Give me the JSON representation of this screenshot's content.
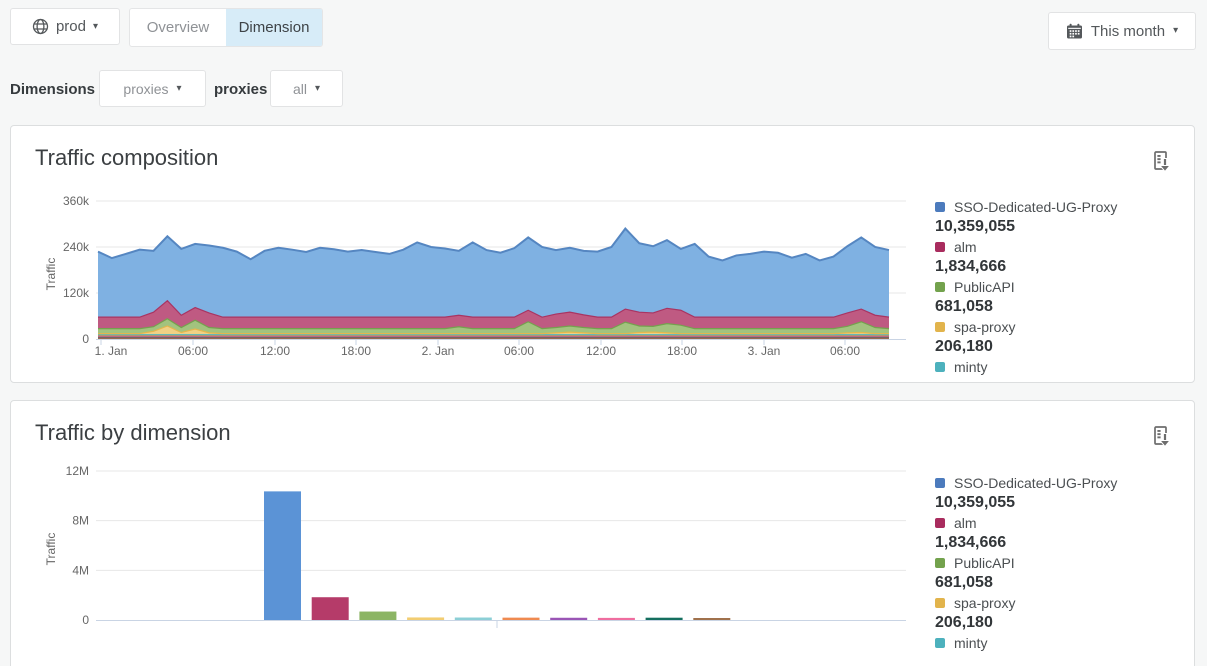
{
  "header": {
    "env": {
      "label": "prod"
    },
    "tabs": [
      {
        "label": "Overview",
        "active": false
      },
      {
        "label": "Dimension",
        "active": true
      }
    ],
    "date_range": {
      "label": "This month"
    }
  },
  "filters": {
    "section_label": "Dimensions",
    "dimension_dropdown": {
      "value": "proxies"
    },
    "dimension_name": "proxies",
    "value_dropdown": {
      "value": "all"
    }
  },
  "cards": [
    {
      "title": "Traffic composition"
    },
    {
      "title": "Traffic by dimension"
    }
  ],
  "legend": {
    "items": [
      {
        "label": "SSO-Dedicated-UG-Proxy",
        "value": "10,359,055",
        "color": "#4c7bbd"
      },
      {
        "label": "alm",
        "value": "1,834,666",
        "color": "#a92c5e"
      },
      {
        "label": "PublicAPI",
        "value": "681,058",
        "color": "#73a24d"
      },
      {
        "label": "spa-proxy",
        "value": "206,180",
        "color": "#e2b44c"
      },
      {
        "label": "minty",
        "value": "",
        "color": "#4db1bd"
      }
    ]
  },
  "chart_data": [
    {
      "type": "area",
      "stacked": true,
      "title": "Traffic composition",
      "ylabel": "Traffic",
      "y_unit": "thousands",
      "ylim": [
        0,
        360
      ],
      "grid": "horizontal",
      "legend_position": "right",
      "yticks": [
        {
          "v": 0,
          "label": "0"
        },
        {
          "v": 120,
          "label": "120k"
        },
        {
          "v": 240,
          "label": "240k"
        },
        {
          "v": 360,
          "label": "360k"
        }
      ],
      "xticks": [
        "1. Jan",
        "06:00",
        "12:00",
        "18:00",
        "2. Jan",
        "06:00",
        "12:00",
        "18:00",
        "3. Jan",
        "06:00"
      ],
      "series_top_to_bottom": [
        {
          "name": "SSO-Dedicated-UG-Proxy",
          "color": "#5586c1",
          "fill": "#7fb1e2",
          "values": [
            171,
            154,
            165,
            176,
            160,
            168,
            173,
            166,
            176,
            181,
            171,
            151,
            173,
            181,
            176,
            170,
            181,
            177,
            171,
            175,
            170,
            165,
            176,
            195,
            183,
            179,
            168,
            195,
            175,
            168,
            180,
            190,
            183,
            167,
            168,
            167,
            171,
            183,
            210,
            180,
            174,
            178,
            160,
            191,
            158,
            148,
            161,
            165,
            171,
            168,
            155,
            165,
            148,
            158,
            174,
            187,
            178,
            175
          ]
        },
        {
          "name": "alm",
          "color": "#a93462",
          "fill": "#bf5a82",
          "values": [
            30,
            30,
            30,
            30,
            38,
            47,
            32,
            33,
            38,
            30,
            30,
            30,
            30,
            30,
            30,
            30,
            30,
            30,
            30,
            30,
            30,
            30,
            30,
            30,
            30,
            30,
            30,
            30,
            30,
            30,
            30,
            30,
            30,
            35,
            36,
            33,
            30,
            30,
            34,
            36,
            35,
            40,
            39,
            30,
            30,
            30,
            30,
            30,
            30,
            30,
            30,
            30,
            30,
            30,
            35,
            33,
            32,
            30
          ]
        },
        {
          "name": "PublicAPI",
          "color": "#74a24e",
          "fill": "#a2c37e",
          "values": [
            13,
            13,
            13,
            13,
            12,
            19,
            13,
            23,
            14,
            13,
            13,
            13,
            13,
            13,
            13,
            13,
            13,
            13,
            13,
            13,
            13,
            13,
            13,
            13,
            13,
            13,
            18,
            13,
            13,
            13,
            13,
            31,
            13,
            14,
            16,
            14,
            13,
            13,
            30,
            17,
            15,
            24,
            22,
            13,
            13,
            13,
            13,
            13,
            13,
            13,
            13,
            13,
            13,
            13,
            17,
            28,
            16,
            13
          ]
        },
        {
          "name": "spa-proxy",
          "color": "#e3b64e",
          "fill": "#f0d185",
          "values": [
            3,
            3,
            3,
            3,
            9,
            23,
            6,
            15,
            5,
            3,
            3,
            3,
            3,
            3,
            3,
            3,
            3,
            3,
            3,
            3,
            3,
            3,
            3,
            3,
            3,
            3,
            3,
            3,
            3,
            3,
            3,
            3,
            3,
            5,
            7,
            5,
            3,
            3,
            3,
            6,
            7,
            5,
            3,
            3,
            3,
            3,
            3,
            3,
            3,
            3,
            3,
            3,
            3,
            3,
            5,
            6,
            3,
            3
          ]
        },
        {
          "name": "minty",
          "color": "#4fb3bf",
          "fill": "#8ed2d8",
          "const": 2.5
        },
        {
          "name": "",
          "color": "#e8823f",
          "fill": "#f0a873",
          "const": 1.5
        },
        {
          "name": "",
          "color": "#9455ad",
          "fill": "#b384c4",
          "const": 1
        },
        {
          "name": "",
          "color": "#ee6b9e",
          "fill": "#f49cbd",
          "const": 1
        },
        {
          "name": "",
          "color": "#0f6153",
          "fill": "#3d8577",
          "const": 3
        },
        {
          "name": "",
          "color": "#96634a",
          "fill": "#b08a74",
          "const": 2
        }
      ]
    },
    {
      "type": "bar",
      "title": "Traffic by dimension",
      "ylabel": "Traffic",
      "ylim": [
        0,
        12000000
      ],
      "grid": "horizontal",
      "legend_position": "right",
      "yticks": [
        {
          "v": 0,
          "label": "0"
        },
        {
          "v": 4000000,
          "label": "4M"
        },
        {
          "v": 8000000,
          "label": "8M"
        },
        {
          "v": 12000000,
          "label": "12M"
        }
      ],
      "bars": [
        {
          "name": "SSO-Dedicated-UG-Proxy",
          "value": 10359055,
          "color": "#5b93d6"
        },
        {
          "name": "alm",
          "value": 1834666,
          "color": "#b53b69"
        },
        {
          "name": "PublicAPI",
          "value": 681058,
          "color": "#8cb564"
        },
        {
          "name": "spa-proxy",
          "value": 206180,
          "color": "#f2cd72"
        },
        {
          "name": "minty",
          "value": 200000,
          "color": "#8ccfd6"
        },
        {
          "name": "",
          "value": 190000,
          "color": "#ef8a50"
        },
        {
          "name": "",
          "value": 180000,
          "color": "#9a55b5"
        },
        {
          "name": "",
          "value": 170000,
          "color": "#ef6d9f"
        },
        {
          "name": "",
          "value": 185000,
          "color": "#156f5f"
        },
        {
          "name": "",
          "value": 160000,
          "color": "#a0714c"
        }
      ]
    }
  ]
}
